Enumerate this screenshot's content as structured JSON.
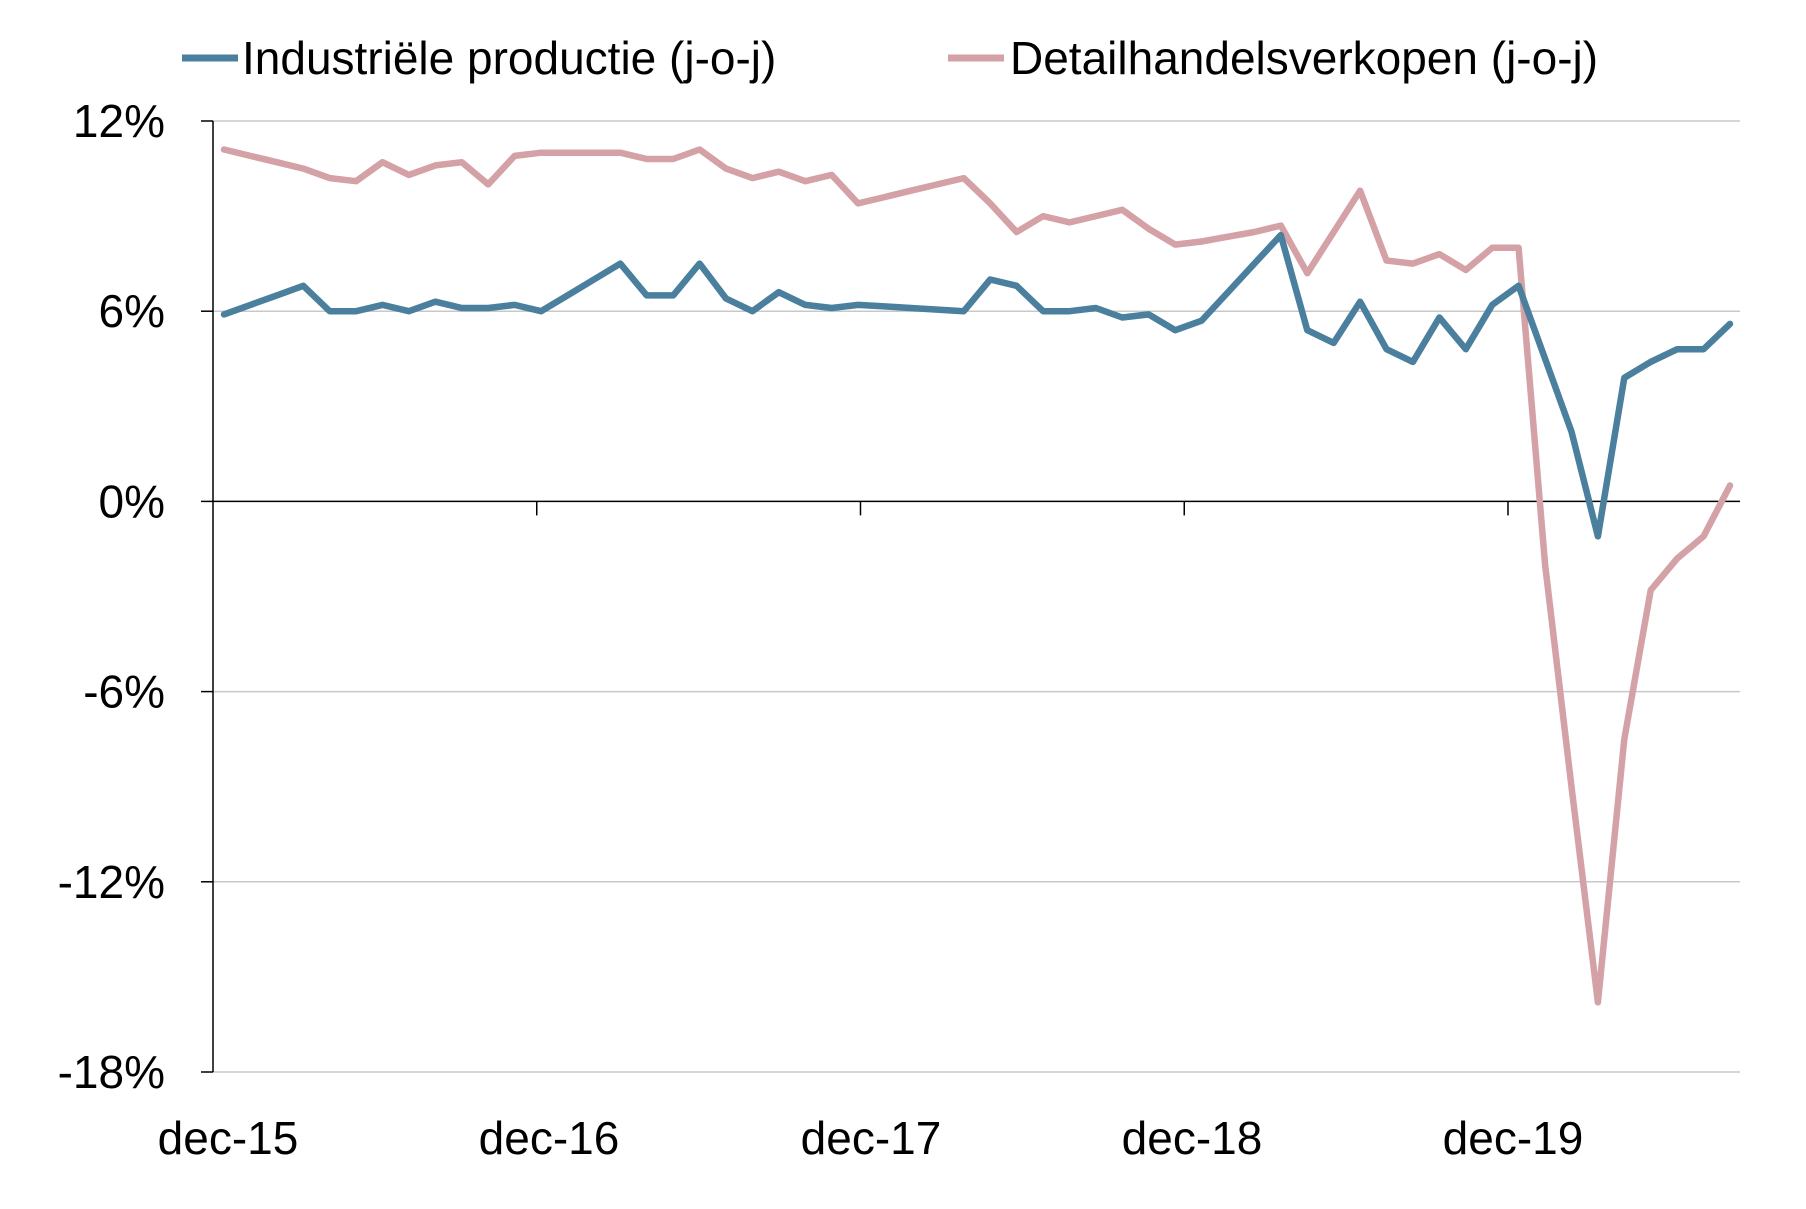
{
  "chart_data": {
    "type": "line",
    "title": "",
    "xlabel": "",
    "ylabel": "",
    "ylim": [
      -18,
      12
    ],
    "y_ticks": [
      12,
      6,
      0,
      -6,
      -12,
      -18
    ],
    "y_tick_labels": [
      "12%",
      "6%",
      "0%",
      "-6%",
      "-12%",
      "-18%"
    ],
    "x_tick_labels": [
      "dec-15",
      "dec-16",
      "dec-17",
      "dec-18",
      "dec-19"
    ],
    "x_tick_index": [
      0,
      12,
      24,
      36,
      48
    ],
    "grid": "horizontal",
    "legend_position": "top",
    "x": [
      "2015-12",
      "2016-01",
      "2016-02",
      "2016-03",
      "2016-04",
      "2016-05",
      "2016-06",
      "2016-07",
      "2016-08",
      "2016-09",
      "2016-10",
      "2016-11",
      "2016-12",
      "2017-01",
      "2017-02",
      "2017-03",
      "2017-04",
      "2017-05",
      "2017-06",
      "2017-07",
      "2017-08",
      "2017-09",
      "2017-10",
      "2017-11",
      "2017-12",
      "2018-01",
      "2018-02",
      "2018-03",
      "2018-04",
      "2018-05",
      "2018-06",
      "2018-07",
      "2018-08",
      "2018-09",
      "2018-10",
      "2018-11",
      "2018-12",
      "2019-01",
      "2019-02",
      "2019-03",
      "2019-04",
      "2019-05",
      "2019-06",
      "2019-07",
      "2019-08",
      "2019-09",
      "2019-10",
      "2019-11",
      "2019-12",
      "2020-01",
      "2020-02",
      "2020-03",
      "2020-04",
      "2020-05",
      "2020-06",
      "2020-07",
      "2020-08",
      "2020-09"
    ],
    "series": [
      {
        "name": "Industriële productie (j-o-j)",
        "color": "#4a7f9e",
        "values": [
          5.9,
          6.2,
          6.5,
          6.8,
          6.0,
          6.0,
          6.2,
          6.0,
          6.3,
          6.1,
          6.1,
          6.2,
          6.0,
          6.5,
          7.0,
          7.5,
          6.5,
          6.5,
          7.5,
          6.4,
          6.0,
          6.6,
          6.2,
          6.1,
          6.2,
          6.15,
          6.1,
          6.05,
          6.0,
          7.0,
          6.8,
          6.0,
          6.0,
          6.1,
          5.8,
          5.9,
          5.4,
          5.7,
          6.6,
          7.5,
          8.4,
          5.4,
          5.0,
          6.3,
          4.8,
          4.4,
          5.8,
          4.8,
          6.2,
          6.8,
          4.5,
          2.2,
          -1.1,
          3.9,
          4.4,
          4.8,
          4.8,
          5.6
        ]
      },
      {
        "name": "Detailhandelsverkopen (j-o-j)",
        "color": "#d4a1a6",
        "values": [
          11.1,
          10.9,
          10.7,
          10.5,
          10.2,
          10.1,
          10.7,
          10.3,
          10.6,
          10.7,
          10.0,
          10.9,
          11.0,
          11.0,
          11.0,
          11.0,
          10.8,
          10.8,
          11.1,
          10.5,
          10.2,
          10.4,
          10.1,
          10.3,
          9.4,
          9.6,
          9.8,
          10.0,
          10.2,
          9.4,
          8.5,
          9.0,
          8.8,
          9.0,
          9.2,
          8.6,
          8.1,
          8.2,
          8.35,
          8.5,
          8.7,
          7.2,
          8.5,
          9.8,
          7.6,
          7.5,
          7.8,
          7.3,
          8.0,
          8.0,
          -2.0,
          -9.0,
          -15.8,
          -7.5,
          -2.8,
          -1.8,
          -1.1,
          0.5
        ]
      }
    ]
  }
}
